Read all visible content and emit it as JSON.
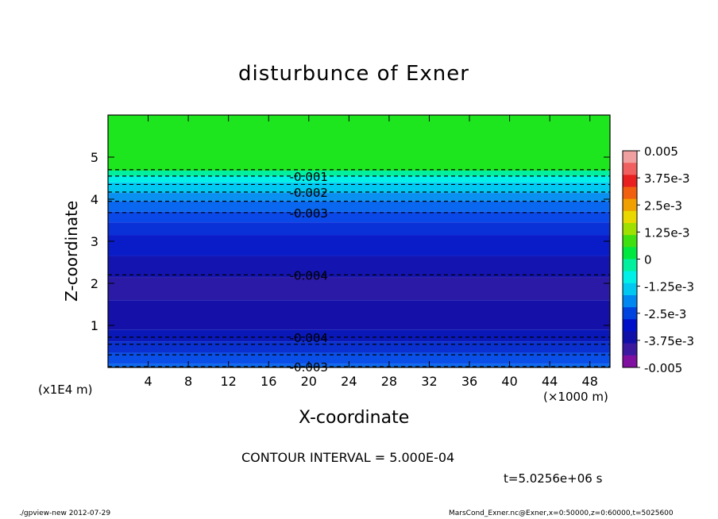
{
  "chart_data": {
    "type": "heatmap",
    "title": "disturbunce of Exner",
    "xlabel": "X-coordinate",
    "ylabel": "Z-coordinate",
    "x_unit_label": "(×1000 m)",
    "y_unit_label": "(x1E4 m)",
    "xlim": [
      0,
      50
    ],
    "ylim": [
      0,
      6
    ],
    "x_ticks": [
      4,
      8,
      12,
      16,
      20,
      24,
      28,
      32,
      36,
      40,
      44,
      48
    ],
    "y_ticks": [
      1,
      2,
      3,
      4,
      5
    ],
    "grid": false,
    "colorbar": {
      "ticks": [
        "0.005",
        "3.75e-3",
        "2.5e-3",
        "1.25e-3",
        "0",
        "-1.25e-3",
        "-2.5e-3",
        "-3.75e-3",
        "-0.005"
      ],
      "colors": [
        "#f0a0a0",
        "#f06060",
        "#e82020",
        "#f06010",
        "#f0a000",
        "#e8d800",
        "#a0e000",
        "#40e010",
        "#00e840",
        "#00f0a0",
        "#00f0e8",
        "#00c8f0",
        "#0088f0",
        "#0044e0",
        "#0010c8",
        "#1010a8",
        "#3c1aa0",
        "#8010a0"
      ]
    },
    "contour_interval": "CONTOUR INTERVAL = 5.000E-04",
    "bands": [
      {
        "z0": 0.0,
        "z1": 0.08,
        "color": "#0a6cf0"
      },
      {
        "z0": 0.08,
        "z1": 0.35,
        "color": "#0a50e8"
      },
      {
        "z0": 0.35,
        "z1": 0.62,
        "color": "#0a30d0"
      },
      {
        "z0": 0.62,
        "z1": 0.9,
        "color": "#0a18b8"
      },
      {
        "z0": 0.9,
        "z1": 1.6,
        "color": "#1410a8"
      },
      {
        "z0": 1.6,
        "z1": 2.15,
        "color": "#2a1aa6"
      },
      {
        "z0": 2.15,
        "z1": 2.65,
        "color": "#1414b0"
      },
      {
        "z0": 2.65,
        "z1": 3.15,
        "color": "#0a1cc8"
      },
      {
        "z0": 3.15,
        "z1": 3.45,
        "color": "#0a30d8"
      },
      {
        "z0": 3.45,
        "z1": 3.7,
        "color": "#0a48e8"
      },
      {
        "z0": 3.7,
        "z1": 3.95,
        "color": "#0a68f0"
      },
      {
        "z0": 3.95,
        "z1": 4.15,
        "color": "#0a90f0"
      },
      {
        "z0": 4.15,
        "z1": 4.4,
        "color": "#00c8f0"
      },
      {
        "z0": 4.4,
        "z1": 4.55,
        "color": "#00f0e8"
      },
      {
        "z0": 4.55,
        "z1": 4.68,
        "color": "#00f0a0"
      },
      {
        "z0": 4.68,
        "z1": 6.0,
        "color": "#1ee61e"
      }
    ],
    "contours": [
      {
        "z": 0.02,
        "label": "-0.003",
        "label_x": 20
      },
      {
        "z": 0.3,
        "label": "",
        "label_x": 0
      },
      {
        "z": 0.55,
        "label": "",
        "label_x": 0
      },
      {
        "z": 0.72,
        "label": "-0.004",
        "label_x": 20
      },
      {
        "z": 2.2,
        "label": "-0.004",
        "label_x": 20
      },
      {
        "z": 3.68,
        "label": "-0.003",
        "label_x": 20
      },
      {
        "z": 3.95,
        "label": "",
        "label_x": 0
      },
      {
        "z": 4.17,
        "label": "-0.002",
        "label_x": 20
      },
      {
        "z": 4.35,
        "label": "",
        "label_x": 0
      },
      {
        "z": 4.55,
        "label": "-0.001",
        "label_x": 20
      },
      {
        "z": 4.7,
        "label": "",
        "label_x": 0
      }
    ]
  },
  "time_label": "t=5.0256e+06 s",
  "footer": {
    "left": "./gpview-new   2012-07-29",
    "right": "MarsCond_Exner.nc@Exner,x=0:50000,z=0:60000,t=5025600"
  }
}
